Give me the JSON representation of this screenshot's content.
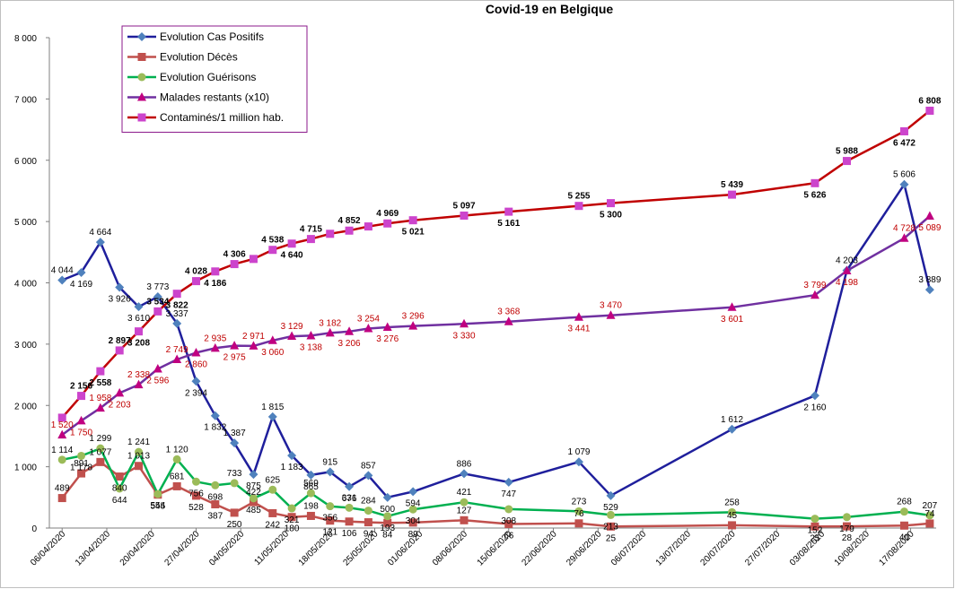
{
  "chart_data": {
    "type": "line",
    "title": "Covid-19 en Belgique",
    "xlabel": "",
    "ylabel": "",
    "ylim": [
      0,
      8000
    ],
    "y_ticks": [
      0,
      1000,
      2000,
      3000,
      4000,
      5000,
      6000,
      7000,
      8000
    ],
    "y_tick_labels": [
      "0",
      "1 000",
      "2 000",
      "3 000",
      "4 000",
      "5 000",
      "6 000",
      "7 000",
      "8 000"
    ],
    "x_tick_labels": [
      "06/04/2020",
      "13/04/2020",
      "20/04/2020",
      "27/04/2020",
      "04/05/2020",
      "11/05/2020",
      "18/05/2020",
      "25/05/2020",
      "01/06/2020",
      "08/06/2020",
      "15/06/2020",
      "22/06/2020",
      "29/06/2020",
      "06/07/2020",
      "13/07/2020",
      "20/07/2020",
      "27/07/2020",
      "03/08/2020",
      "10/08/2020",
      "17/08/2020"
    ],
    "x_range": [
      "2020-04-04",
      "2020-08-21"
    ],
    "grid": false,
    "legend_position": "top-left",
    "series": [
      {
        "name": "Evolution Cas Positifs",
        "color": "#1f1f9c",
        "marker": "diamond",
        "marker_color": "#4f81bd",
        "label_color": "#000000",
        "label_bold": false,
        "points": [
          [
            "2020-04-06",
            4044,
            "4 044"
          ],
          [
            "2020-04-09",
            4169,
            "4 169"
          ],
          [
            "2020-04-12",
            4664,
            "4 664"
          ],
          [
            "2020-04-15",
            3926,
            "3 926"
          ],
          [
            "2020-04-18",
            3610,
            "3 610"
          ],
          [
            "2020-04-21",
            3773,
            "3 773"
          ],
          [
            "2020-04-24",
            3337,
            "3 337"
          ],
          [
            "2020-04-27",
            2394,
            "2 394"
          ],
          [
            "2020-04-30",
            1832,
            "1 832"
          ],
          [
            "2020-05-03",
            1387,
            "1 387"
          ],
          [
            "2020-05-06",
            875,
            "875"
          ],
          [
            "2020-05-09",
            1815,
            "1 815"
          ],
          [
            "2020-05-12",
            1183,
            "1 183"
          ],
          [
            "2020-05-15",
            865,
            "865"
          ],
          [
            "2020-05-18",
            915,
            "915"
          ],
          [
            "2020-05-21",
            676,
            "676"
          ],
          [
            "2020-05-24",
            857,
            "857"
          ],
          [
            "2020-05-27",
            500,
            "500"
          ],
          [
            "2020-05-31",
            594,
            "594"
          ],
          [
            "2020-06-08",
            886,
            "886"
          ],
          [
            "2020-06-15",
            747,
            "747"
          ],
          [
            "2020-06-26",
            1079,
            "1 079"
          ],
          [
            "2020-07-01",
            529,
            "529"
          ],
          [
            "2020-07-20",
            1612,
            "1 612"
          ],
          [
            "2020-08-02",
            2160,
            "2 160"
          ],
          [
            "2020-08-07",
            4203,
            "4 203"
          ],
          [
            "2020-08-16",
            5606,
            "5 606"
          ],
          [
            "2020-08-20",
            3889,
            "3 889"
          ]
        ]
      },
      {
        "name": "Evolution Décès",
        "color": "#c0504d",
        "marker": "square",
        "marker_color": "#c0504d",
        "label_color": "#000000",
        "label_bold": false,
        "points": [
          [
            "2020-04-06",
            489,
            "489"
          ],
          [
            "2020-04-09",
            891,
            "891"
          ],
          [
            "2020-04-12",
            1077,
            "1 077"
          ],
          [
            "2020-04-15",
            840,
            "840"
          ],
          [
            "2020-04-18",
            1013,
            "1 013"
          ],
          [
            "2020-04-21",
            545,
            "545"
          ],
          [
            "2020-04-24",
            681,
            "681"
          ],
          [
            "2020-04-27",
            528,
            "528"
          ],
          [
            "2020-04-30",
            387,
            "387"
          ],
          [
            "2020-05-03",
            250,
            "250"
          ],
          [
            "2020-05-06",
            422,
            "422"
          ],
          [
            "2020-05-09",
            242,
            "242"
          ],
          [
            "2020-05-12",
            180,
            "180"
          ],
          [
            "2020-05-15",
            198,
            "198"
          ],
          [
            "2020-05-18",
            121,
            "121"
          ],
          [
            "2020-05-21",
            106,
            "106"
          ],
          [
            "2020-05-24",
            94,
            "94"
          ],
          [
            "2020-05-27",
            84,
            "84"
          ],
          [
            "2020-05-31",
            89,
            "89"
          ],
          [
            "2020-06-08",
            127,
            "127"
          ],
          [
            "2020-06-15",
            66,
            "66"
          ],
          [
            "2020-06-26",
            76,
            "76"
          ],
          [
            "2020-07-01",
            25,
            "25"
          ],
          [
            "2020-07-20",
            45,
            "45"
          ],
          [
            "2020-08-02",
            25,
            "25"
          ],
          [
            "2020-08-07",
            28,
            "28"
          ],
          [
            "2020-08-16",
            40,
            "40"
          ],
          [
            "2020-08-20",
            74,
            "74"
          ]
        ]
      },
      {
        "name": "Evolution Guérisons",
        "color": "#00b050",
        "marker": "circle",
        "marker_color": "#9bbb59",
        "label_color": "#000000",
        "label_bold": false,
        "points": [
          [
            "2020-04-06",
            1114,
            "1 114"
          ],
          [
            "2020-04-09",
            1178,
            "1 178"
          ],
          [
            "2020-04-12",
            1299,
            "1 299"
          ],
          [
            "2020-04-15",
            644,
            "644"
          ],
          [
            "2020-04-18",
            1241,
            "1 241"
          ],
          [
            "2020-04-21",
            554,
            "554"
          ],
          [
            "2020-04-24",
            1120,
            "1 120"
          ],
          [
            "2020-04-27",
            756,
            "756"
          ],
          [
            "2020-04-30",
            698,
            "698"
          ],
          [
            "2020-05-03",
            733,
            "733"
          ],
          [
            "2020-05-06",
            485,
            "485"
          ],
          [
            "2020-05-09",
            625,
            "625"
          ],
          [
            "2020-05-12",
            321,
            "321"
          ],
          [
            "2020-05-15",
            569,
            "569"
          ],
          [
            "2020-05-18",
            356,
            "356"
          ],
          [
            "2020-05-21",
            331,
            "331"
          ],
          [
            "2020-05-24",
            284,
            "284"
          ],
          [
            "2020-05-27",
            193,
            "193"
          ],
          [
            "2020-05-31",
            304,
            "304"
          ],
          [
            "2020-06-08",
            421,
            "421"
          ],
          [
            "2020-06-15",
            308,
            "308"
          ],
          [
            "2020-06-26",
            273,
            "273"
          ],
          [
            "2020-07-01",
            213,
            "213"
          ],
          [
            "2020-07-20",
            258,
            "258"
          ],
          [
            "2020-08-02",
            152,
            "152"
          ],
          [
            "2020-08-07",
            179,
            "179"
          ],
          [
            "2020-08-16",
            268,
            "268"
          ],
          [
            "2020-08-20",
            207,
            "207"
          ]
        ]
      },
      {
        "name": "Malades restants (x10)",
        "color": "#7030a0",
        "marker": "triangle",
        "marker_color": "#c00080",
        "label_color": "#c00000",
        "label_bold": false,
        "points": [
          [
            "2020-04-06",
            1520,
            "1 520"
          ],
          [
            "2020-04-09",
            1750,
            "1 750"
          ],
          [
            "2020-04-12",
            1958,
            "1 958"
          ],
          [
            "2020-04-15",
            2203,
            "2 203"
          ],
          [
            "2020-04-18",
            2338,
            "2 338"
          ],
          [
            "2020-04-21",
            2596,
            "2 596"
          ],
          [
            "2020-04-24",
            2749,
            "2 749"
          ],
          [
            "2020-04-27",
            2860,
            "2 860"
          ],
          [
            "2020-04-30",
            2935,
            "2 935"
          ],
          [
            "2020-05-03",
            2975,
            "2 975"
          ],
          [
            "2020-05-06",
            2971,
            "2 971"
          ],
          [
            "2020-05-09",
            3060,
            "3 060"
          ],
          [
            "2020-05-12",
            3129,
            "3 129"
          ],
          [
            "2020-05-15",
            3138,
            "3 138"
          ],
          [
            "2020-05-18",
            3182,
            "3 182"
          ],
          [
            "2020-05-21",
            3206,
            "3 206"
          ],
          [
            "2020-05-24",
            3254,
            "3 254"
          ],
          [
            "2020-05-27",
            3276,
            "3 276"
          ],
          [
            "2020-05-31",
            3296,
            "3 296"
          ],
          [
            "2020-06-08",
            3330,
            "3 330"
          ],
          [
            "2020-06-15",
            3368,
            "3 368"
          ],
          [
            "2020-06-26",
            3441,
            "3 441"
          ],
          [
            "2020-07-01",
            3470,
            "3 470"
          ],
          [
            "2020-07-20",
            3601,
            "3 601"
          ],
          [
            "2020-08-02",
            3799,
            "3 799"
          ],
          [
            "2020-08-07",
            4198,
            "4 198"
          ],
          [
            "2020-08-16",
            4728,
            "4 728"
          ],
          [
            "2020-08-20",
            5089,
            "5 089"
          ]
        ]
      },
      {
        "name": "Contaminés/1 million hab.",
        "color": "#c00000",
        "marker": "square",
        "marker_color": "#cc44cc",
        "label_color": "#000000",
        "label_bold": true,
        "points": [
          [
            "2020-04-06",
            1800,
            ""
          ],
          [
            "2020-04-09",
            2156,
            "2 156"
          ],
          [
            "2020-04-12",
            2558,
            "2 558"
          ],
          [
            "2020-04-15",
            2897,
            "2 897"
          ],
          [
            "2020-04-18",
            3208,
            "3 208"
          ],
          [
            "2020-04-21",
            3534,
            "3 534"
          ],
          [
            "2020-04-24",
            3822,
            "3 822"
          ],
          [
            "2020-04-27",
            4028,
            "4 028"
          ],
          [
            "2020-04-30",
            4186,
            "4 186"
          ],
          [
            "2020-05-03",
            4306,
            "4 306"
          ],
          [
            "2020-05-06",
            4390,
            ""
          ],
          [
            "2020-05-09",
            4538,
            "4 538"
          ],
          [
            "2020-05-12",
            4640,
            "4 640"
          ],
          [
            "2020-05-15",
            4715,
            "4 715"
          ],
          [
            "2020-05-18",
            4800,
            ""
          ],
          [
            "2020-05-21",
            4852,
            "4 852"
          ],
          [
            "2020-05-24",
            4920,
            ""
          ],
          [
            "2020-05-27",
            4969,
            "4 969"
          ],
          [
            "2020-05-31",
            5021,
            "5 021"
          ],
          [
            "2020-06-08",
            5097,
            "5 097"
          ],
          [
            "2020-06-15",
            5161,
            "5 161"
          ],
          [
            "2020-06-26",
            5255,
            "5 255"
          ],
          [
            "2020-07-01",
            5300,
            "5 300"
          ],
          [
            "2020-07-20",
            5439,
            "5 439"
          ],
          [
            "2020-08-02",
            5626,
            "5 626"
          ],
          [
            "2020-08-07",
            5988,
            "5 988"
          ],
          [
            "2020-08-16",
            6472,
            "6 472"
          ],
          [
            "2020-08-20",
            6808,
            "6 808"
          ]
        ]
      }
    ]
  },
  "colors": {
    "legend_border": "#8b1a8b",
    "axis": "#7f7f7f",
    "frame": "#bfbfbf"
  }
}
